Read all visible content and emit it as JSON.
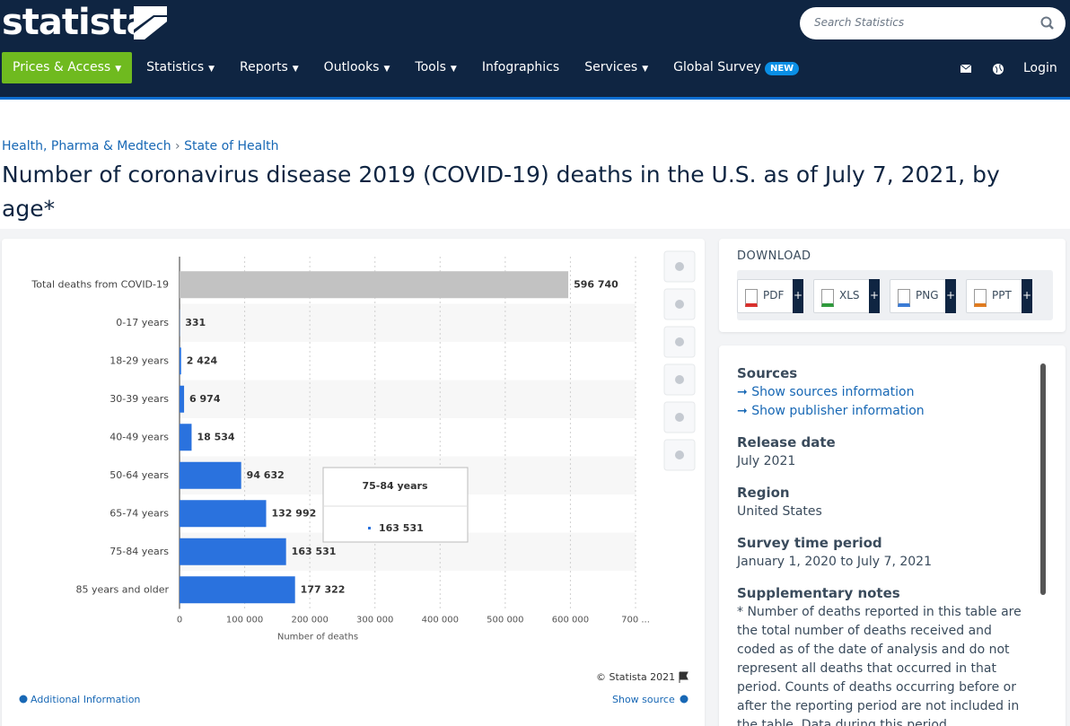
{
  "header": {
    "logo": "statista",
    "search_placeholder": "Search Statistics",
    "nav": [
      "Prices & Access",
      "Statistics",
      "Reports",
      "Outlooks",
      "Tools",
      "Infographics",
      "Services",
      "Global Survey"
    ],
    "badge": "NEW",
    "login": "Login"
  },
  "breadcrumb": [
    "Health, Pharma & Medtech",
    "State of Health"
  ],
  "title": "Number of coronavirus disease 2019 (COVID-19) deaths in the U.S. as of July 7, 2021, by age*",
  "chart_data": {
    "type": "bar",
    "orientation": "horizontal",
    "categories": [
      "Total deaths from COVID-19",
      "0-17 years",
      "18-29 years",
      "30-39 years",
      "40-49 years",
      "50-64 years",
      "65-74 years",
      "75-84 years",
      "85 years and older"
    ],
    "values": [
      596740,
      331,
      2424,
      6974,
      18534,
      94632,
      132992,
      163531,
      177322
    ],
    "value_labels": [
      "596 740",
      "331",
      "2 424",
      "6 974",
      "18 534",
      "94 632",
      "132 992",
      "163 531",
      "177 322"
    ],
    "colors": [
      "#c2c2c2",
      "#2a72de",
      "#2a72de",
      "#2a72de",
      "#2a72de",
      "#2a72de",
      "#2a72de",
      "#2a72de",
      "#2a72de"
    ],
    "xlabel": "Number of deaths",
    "xlim": [
      0,
      700000
    ],
    "xticks": [
      0,
      {
        "value": 100000,
        "label": "100 000"
      },
      {
        "value": 200000,
        "label": "200 000"
      },
      {
        "value": 300000,
        "label": "300 000"
      },
      {
        "value": 400000,
        "label": "400 000"
      },
      {
        "value": 500000,
        "label": "500 000"
      },
      {
        "value": 600000,
        "label": "600 000"
      },
      {
        "value": 700000,
        "label": "700 ..."
      }
    ],
    "grid": true,
    "tooltip": {
      "title": "75-84 years",
      "value": "163 531"
    }
  },
  "chart_footer": {
    "credit": "© Statista 2021",
    "additional": "Additional Information",
    "show_source": "Show source"
  },
  "download": {
    "heading": "DOWNLOAD",
    "buttons": [
      "PDF",
      "XLS",
      "PNG",
      "PPT"
    ]
  },
  "details": [
    {
      "heading": "Sources",
      "links": [
        "Show sources information",
        "Show publisher information"
      ]
    },
    {
      "heading": "Release date",
      "text": "July 2021"
    },
    {
      "heading": "Region",
      "text": "United States"
    },
    {
      "heading": "Survey time period",
      "text": "January 1, 2020 to July 7, 2021"
    },
    {
      "heading": "Supplementary notes",
      "text": "* Number of deaths reported in this table are the total number of deaths received and coded as of the date of analysis and do not represent all deaths that occurred in that period. Counts of deaths occurring before or after the reporting period are not included in the table. Data during this period"
    }
  ]
}
